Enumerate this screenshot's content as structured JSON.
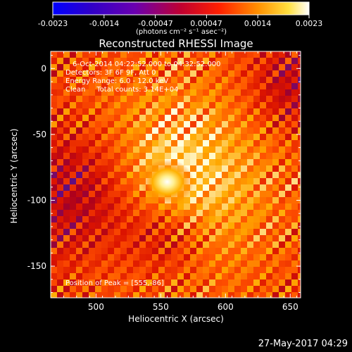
{
  "colorbar": {
    "ticks": [
      "-0.0023",
      "-0.0014",
      "-0.00047",
      "0.00047",
      "0.0014",
      "0.0023"
    ],
    "unit_label": "(photons cm⁻² s⁻¹ asec⁻²)"
  },
  "chart_data": {
    "type": "heatmap",
    "title": "Reconstructed RHESSI Image",
    "xlabel": "Heliocentric X (arcsec)",
    "ylabel": "Heliocentric Y (arcsec)",
    "xlim": [
      465,
      658
    ],
    "ylim": [
      -174,
      13
    ],
    "x_ticks": [
      500,
      550,
      600,
      650
    ],
    "y_ticks": [
      0,
      -50,
      -100,
      -150
    ],
    "value_range": [
      -0.0023,
      0.0023
    ],
    "colormap": "black-blue-purple-red-orange-yellow-white",
    "peak": [
      555,
      -86
    ],
    "annotations": [
      "6-Oct-2014 04:22:52.000 to 04:32:52.000",
      "Detectors: 3F 6F 9F, Att 0",
      "Energy Range: 6.0 - 12.0 keV",
      "Clean     Total counts: 3.14E+04"
    ],
    "peak_label": "Position of Peak = [555,-86]"
  },
  "footer": {
    "timestamp": "27-May-2017 04:29"
  }
}
